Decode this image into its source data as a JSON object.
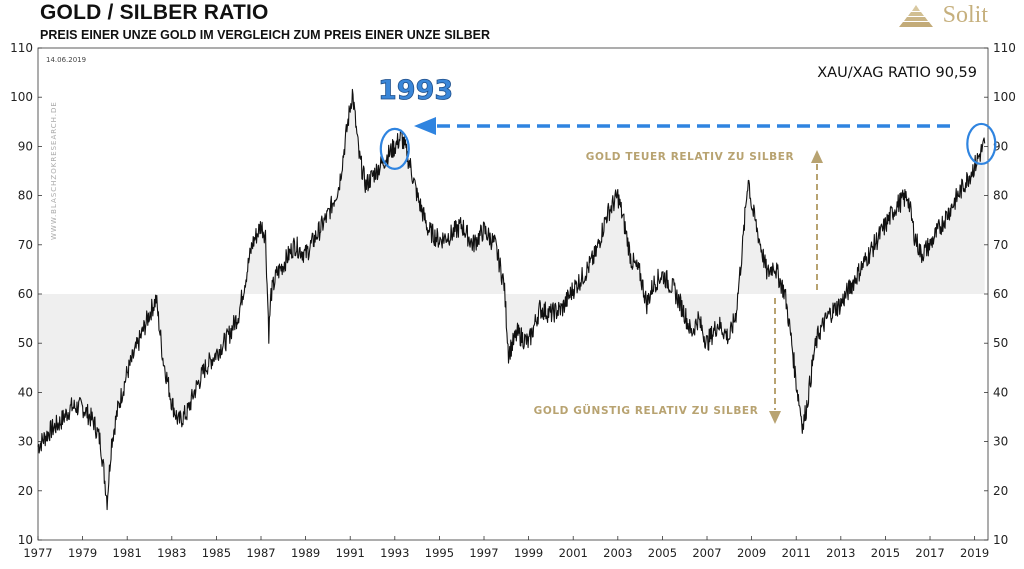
{
  "header": {
    "title": "GOLD  /  SILBER RATIO",
    "subtitle": "PREIS EINER UNZE GOLD IM VERGLEICH ZUM PREIS EINER UNZE SILBER",
    "logo_text": "Solit"
  },
  "colors": {
    "line": "#111111",
    "band": "#efefef",
    "annotation": "#b8a371",
    "highlight": "#2f84e0",
    "logo": "#c6b07e"
  },
  "chart_data": {
    "type": "line",
    "title": "GOLD / SILBER RATIO",
    "date_stamp": "14.06.2019",
    "watermark": "WWW.BLASCHZOKRESEARCH.DE",
    "current_label": "XAU/XAG RATIO 90,59",
    "current_value": 90.59,
    "xlim": [
      1977.0,
      2019.6
    ],
    "ylim": [
      10,
      110
    ],
    "y_ticks": [
      10,
      20,
      30,
      40,
      50,
      60,
      70,
      80,
      90,
      100,
      110
    ],
    "x_ticks": [
      "1977",
      "1979",
      "1981",
      "1983",
      "1985",
      "1987",
      "1989",
      "1991",
      "1993",
      "1995",
      "1997",
      "1999",
      "2001",
      "2003",
      "2005",
      "2007",
      "2009",
      "2011",
      "2013",
      "2015",
      "2017",
      "2019"
    ],
    "reference_level": 60,
    "annotations": {
      "above": "GOLD TEUER RELATIV ZU SILBER",
      "below": "GOLD GÜNSTIG RELATIV ZU SILBER",
      "highlight_year": "1993"
    },
    "series": [
      {
        "name": "XAU/XAG Ratio",
        "x": [
          1977.0,
          1977.5,
          1978.0,
          1978.5,
          1979.0,
          1979.5,
          1979.8,
          1980.0,
          1980.1,
          1980.3,
          1980.6,
          1981.0,
          1981.5,
          1982.0,
          1982.3,
          1982.6,
          1983.0,
          1983.3,
          1983.7,
          1984.0,
          1984.5,
          1985.0,
          1985.5,
          1986.0,
          1986.3,
          1986.6,
          1987.0,
          1987.2,
          1987.35,
          1987.45,
          1987.7,
          1988.0,
          1988.5,
          1989.0,
          1989.5,
          1990.0,
          1990.5,
          1990.9,
          1991.1,
          1991.4,
          1991.7,
          1992.0,
          1992.5,
          1993.0,
          1993.3,
          1993.7,
          1994.0,
          1994.5,
          1995.0,
          1995.5,
          1996.0,
          1996.5,
          1997.0,
          1997.5,
          1997.9,
          1998.1,
          1998.5,
          1999.0,
          1999.5,
          2000.0,
          2000.5,
          2001.0,
          2001.5,
          2002.0,
          2002.5,
          2003.0,
          2003.3,
          2003.6,
          2004.0,
          2004.3,
          2004.6,
          2005.0,
          2005.5,
          2006.0,
          2006.3,
          2006.6,
          2007.0,
          2007.5,
          2008.0,
          2008.3,
          2008.6,
          2008.85,
          2009.0,
          2009.3,
          2009.7,
          2010.0,
          2010.5,
          2010.8,
          2011.0,
          2011.3,
          2011.5,
          2011.8,
          2012.0,
          2012.5,
          2013.0,
          2013.5,
          2014.0,
          2014.5,
          2015.0,
          2015.5,
          2016.0,
          2016.3,
          2016.6,
          2017.0,
          2017.5,
          2018.0,
          2018.5,
          2019.0,
          2019.45
        ],
        "values": [
          29,
          32,
          34,
          37,
          37,
          34,
          30,
          22,
          18,
          30,
          37,
          44,
          50,
          56,
          59,
          47,
          38,
          34,
          36,
          40,
          45,
          48,
          51,
          56,
          63,
          70,
          74,
          72,
          52,
          60,
          64,
          66,
          70,
          68,
          72,
          76,
          82,
          95,
          101,
          88,
          82,
          84,
          87,
          90,
          92,
          86,
          80,
          73,
          71,
          72,
          74,
          70,
          73,
          70,
          62,
          48,
          52,
          50,
          57,
          56,
          57,
          61,
          64,
          68,
          76,
          80,
          74,
          67,
          64,
          58,
          62,
          64,
          61,
          56,
          52,
          55,
          50,
          54,
          51,
          56,
          70,
          84,
          78,
          72,
          64,
          66,
          60,
          50,
          42,
          33,
          38,
          48,
          52,
          56,
          58,
          62,
          66,
          70,
          74,
          78,
          80,
          72,
          68,
          70,
          74,
          78,
          82,
          86,
          90.6
        ]
      }
    ]
  }
}
